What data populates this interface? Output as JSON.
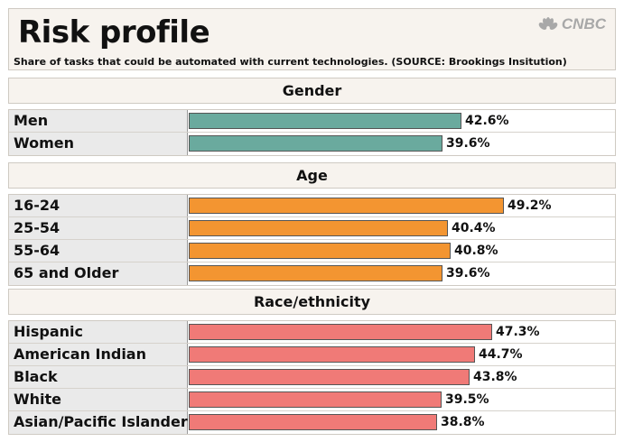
{
  "header": {
    "title": "Risk profile",
    "subtitle": "Share of tasks that could be automated with current technologies. (SOURCE: Brookings Insitution)",
    "logo_text": "CNBC"
  },
  "colors": {
    "gender": "#6aaa9e",
    "age": "#f39531",
    "race": "#f07a77"
  },
  "chart_data": {
    "type": "bar",
    "orientation": "horizontal",
    "title": "Risk profile",
    "subtitle": "Share of tasks that could be automated with current technologies. (SOURCE: Brookings Insitution)",
    "xlim": [
      0,
      50
    ],
    "groups": [
      {
        "name": "Gender",
        "color": "#6aaa9e",
        "categories": [
          "Men",
          "Women"
        ],
        "values": [
          42.6,
          39.6
        ],
        "labels": [
          "42.6%",
          "39.6%"
        ]
      },
      {
        "name": "Age",
        "color": "#f39531",
        "categories": [
          "16-24",
          "25-54",
          "55-64",
          "65 and Older"
        ],
        "values": [
          49.2,
          40.4,
          40.8,
          39.6
        ],
        "labels": [
          "49.2%",
          "40.4%",
          "40.8%",
          "39.6%"
        ]
      },
      {
        "name": "Race/ethnicity",
        "color": "#f07a77",
        "categories": [
          "Hispanic",
          "American Indian",
          "Black",
          "White",
          "Asian/Pacific Islander"
        ],
        "values": [
          47.3,
          44.7,
          43.8,
          39.5,
          38.8
        ],
        "labels": [
          "47.3%",
          "44.7%",
          "43.8%",
          "39.5%",
          "38.8%"
        ]
      }
    ]
  }
}
